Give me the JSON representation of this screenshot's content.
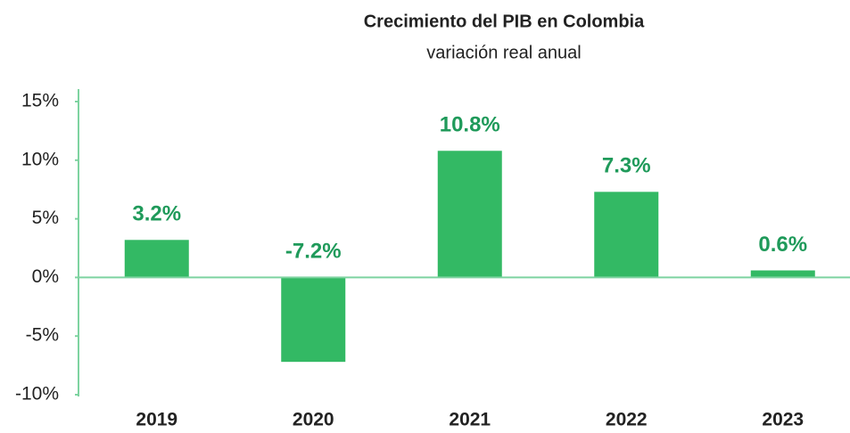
{
  "chart_data": {
    "type": "bar",
    "title": "Crecimiento del PIB en Colombia",
    "subtitle": "variación real anual",
    "categories": [
      "2019",
      "2020",
      "2021",
      "2022",
      "2023"
    ],
    "values": [
      3.2,
      -7.2,
      10.8,
      7.3,
      0.6
    ],
    "value_labels": [
      "3.2%",
      "-7.2%",
      "10.8%",
      "7.3%",
      "0.6%"
    ],
    "color": "#33b964",
    "ylim": [
      -10,
      15
    ],
    "yticks": [
      {
        "value": -10,
        "label": "-10%"
      },
      {
        "value": -5,
        "label": "-5%"
      },
      {
        "value": 0,
        "label": "0%"
      },
      {
        "value": 5,
        "label": "5%"
      },
      {
        "value": 10,
        "label": "10%"
      },
      {
        "value": 15,
        "label": "15%"
      }
    ],
    "grid": false
  }
}
